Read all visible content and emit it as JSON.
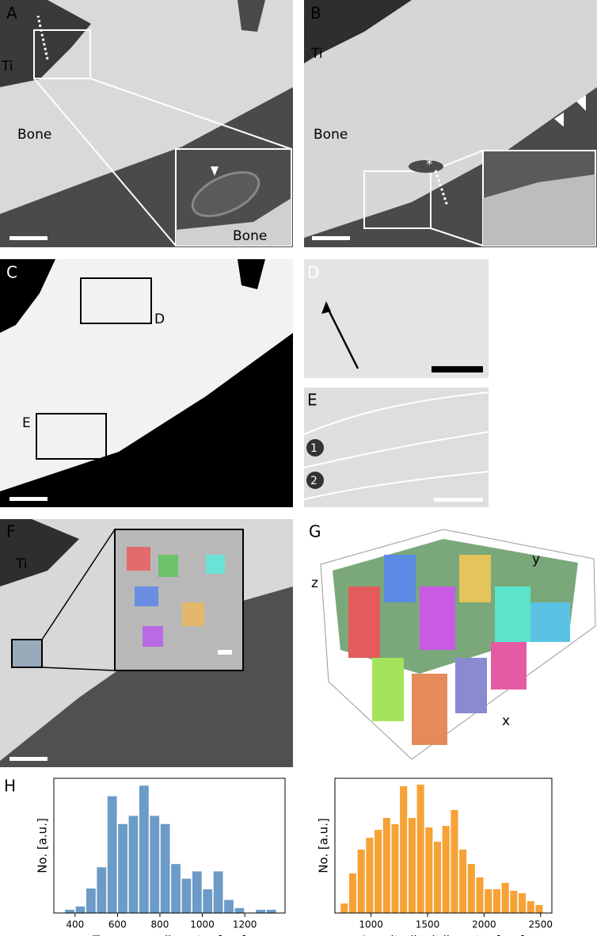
{
  "panels": [
    {
      "label": "A",
      "annotations": [
        "Ti",
        "Bone",
        "Bone"
      ]
    },
    {
      "label": "B",
      "annotations": [
        "Ti",
        "Bone",
        "*"
      ]
    },
    {
      "label": "C",
      "annotations": [
        "D",
        "E"
      ]
    },
    {
      "label": "D",
      "annotations": []
    },
    {
      "label": "E",
      "annotations": [
        "1",
        "2"
      ]
    },
    {
      "label": "F",
      "annotations": [
        "Ti"
      ]
    },
    {
      "label": "G",
      "annotations": [
        "y",
        "z",
        "x"
      ]
    },
    {
      "label": "H",
      "annotations": []
    }
  ],
  "chart_data": [
    {
      "type": "histogram",
      "xlabel": "Transverse diameter [nm]",
      "ylabel": "No. [a.u.]",
      "color": "#6b9bc6",
      "bins": [
        350,
        400,
        450,
        500,
        550,
        600,
        650,
        700,
        750,
        800,
        850,
        900,
        950,
        1000,
        1050,
        1100,
        1150,
        1200,
        1250,
        1300,
        1350
      ],
      "values": [
        4,
        8,
        30,
        56,
        143,
        109,
        119,
        156,
        119,
        109,
        60,
        42,
        51,
        29,
        51,
        16,
        6,
        0,
        4,
        4
      ],
      "xlim": [
        300,
        1390
      ],
      "ylim": [
        0,
        165
      ],
      "xticks": [
        400,
        600,
        800,
        1000,
        1200
      ]
    },
    {
      "type": "histogram",
      "xlabel": "Longitudinal diameter [nm]",
      "ylabel": "No. [a.u.]",
      "color": "#f7a236",
      "bins": [
        725,
        800,
        875,
        950,
        1025,
        1100,
        1175,
        1250,
        1325,
        1400,
        1475,
        1550,
        1625,
        1700,
        1775,
        1850,
        1925,
        2000,
        2075,
        2150,
        2225,
        2300,
        2375,
        2450,
        2525
      ],
      "values": [
        12,
        50,
        80,
        95,
        105,
        120,
        112,
        160,
        120,
        162,
        108,
        90,
        110,
        130,
        80,
        62,
        45,
        30,
        30,
        38,
        28,
        25,
        15,
        10
      ],
      "xlim": [
        680,
        2600
      ],
      "ylim": [
        0,
        170
      ],
      "xticks": [
        1000,
        1500,
        2000,
        2500
      ]
    }
  ]
}
